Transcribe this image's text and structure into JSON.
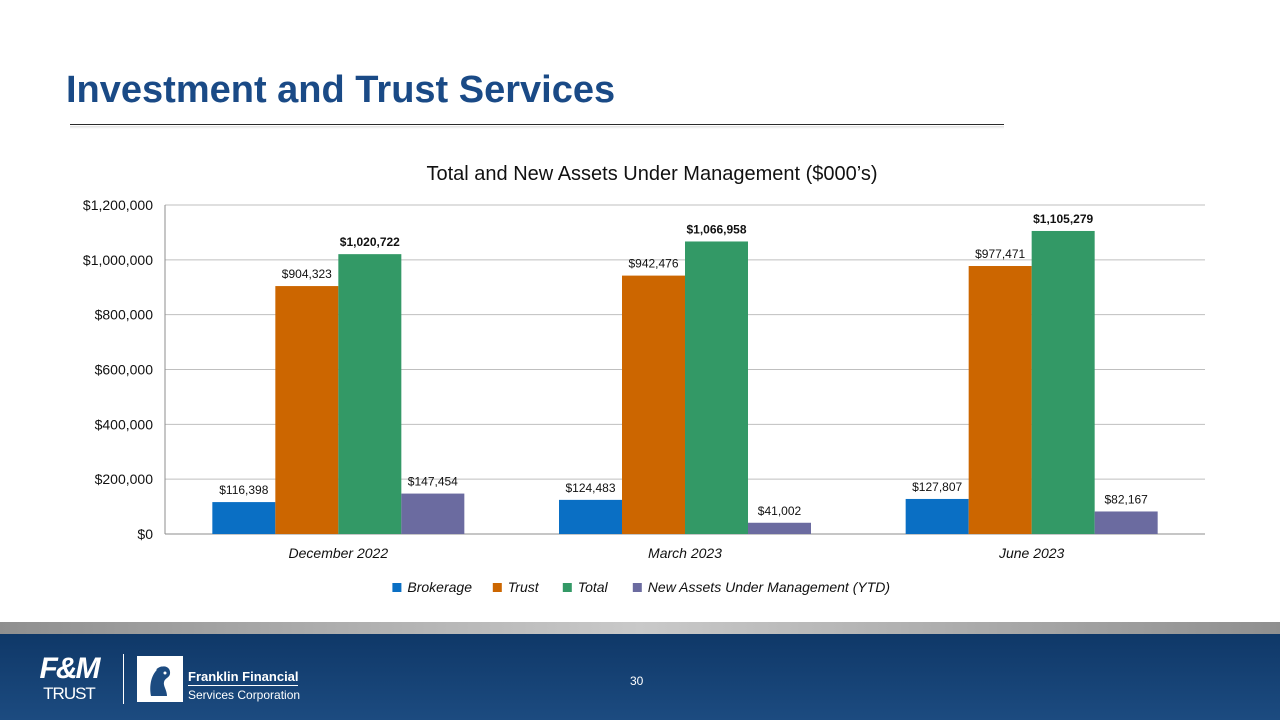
{
  "slide": {
    "title": "Investment and Trust Services",
    "page_number": "30"
  },
  "footer": {
    "fm_logo_top": "F&M",
    "fm_logo_bottom": "TRUST",
    "company_line1": "Franklin Financial",
    "company_line2": "Services Corporation"
  },
  "colors": {
    "title": "#1a4a86",
    "brokerage": "#0a6fc4",
    "trust": "#cc6600",
    "total": "#339966",
    "new_assets": "#6b6ba0",
    "footer": "#133f72"
  },
  "chart_data": {
    "type": "bar",
    "title": "Total and New Assets Under Management ($000’s)",
    "categories": [
      "December 2022",
      "March 2023",
      "June 2023"
    ],
    "series": [
      {
        "name": "Brokerage",
        "values": [
          116398,
          124483,
          127807
        ],
        "labels": [
          "$116,398",
          "$124,483",
          "$127,807"
        ],
        "color": "#0a6fc4",
        "bold": false
      },
      {
        "name": "Trust",
        "values": [
          904323,
          942476,
          977471
        ],
        "labels": [
          "$904,323",
          "$942,476",
          "$977,471"
        ],
        "color": "#cc6600",
        "bold": false
      },
      {
        "name": "Total",
        "values": [
          1020722,
          1066958,
          1105279
        ],
        "labels": [
          "$1,020,722",
          "$1,066,958",
          "$1,105,279"
        ],
        "color": "#339966",
        "bold": true
      },
      {
        "name": "New Assets Under Management (YTD)",
        "values": [
          147454,
          41002,
          82167
        ],
        "labels": [
          "$147,454",
          "$41,002",
          "$82,167"
        ],
        "color": "#6b6ba0",
        "bold": false
      }
    ],
    "yticks": [
      0,
      200000,
      400000,
      600000,
      800000,
      1000000,
      1200000
    ],
    "ytick_labels": [
      "$0",
      "$200,000",
      "$400,000",
      "$600,000",
      "$800,000",
      "$1,000,000",
      "$1,200,000"
    ],
    "ylim": [
      0,
      1200000
    ],
    "xlabel": "",
    "ylabel": "",
    "grid": true,
    "legend_position": "bottom"
  }
}
